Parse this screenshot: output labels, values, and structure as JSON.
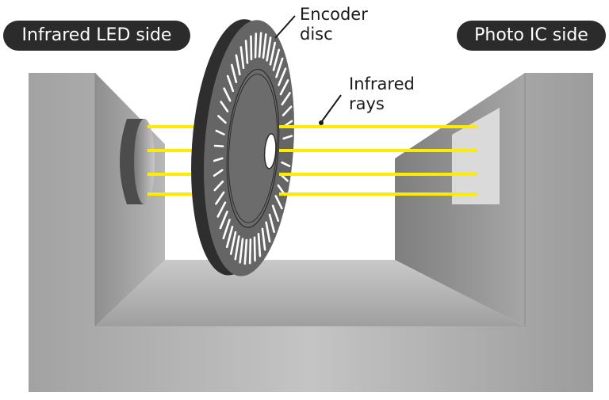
{
  "labels": {
    "left_side": "Infrared LED side",
    "right_side": "Photo IC side",
    "encoder_line1": "Encoder",
    "encoder_line2": "disc",
    "rays_line1": "Infrared",
    "rays_line2": "rays"
  },
  "colors": {
    "label_background": "#2b2b2b",
    "label_text": "#ffffff",
    "ray": "#ffeb00",
    "disc": "#5e5e5e",
    "housing": "#a9a9a9"
  },
  "disc": {
    "slit_count": 48
  },
  "rays": {
    "count": 4
  }
}
